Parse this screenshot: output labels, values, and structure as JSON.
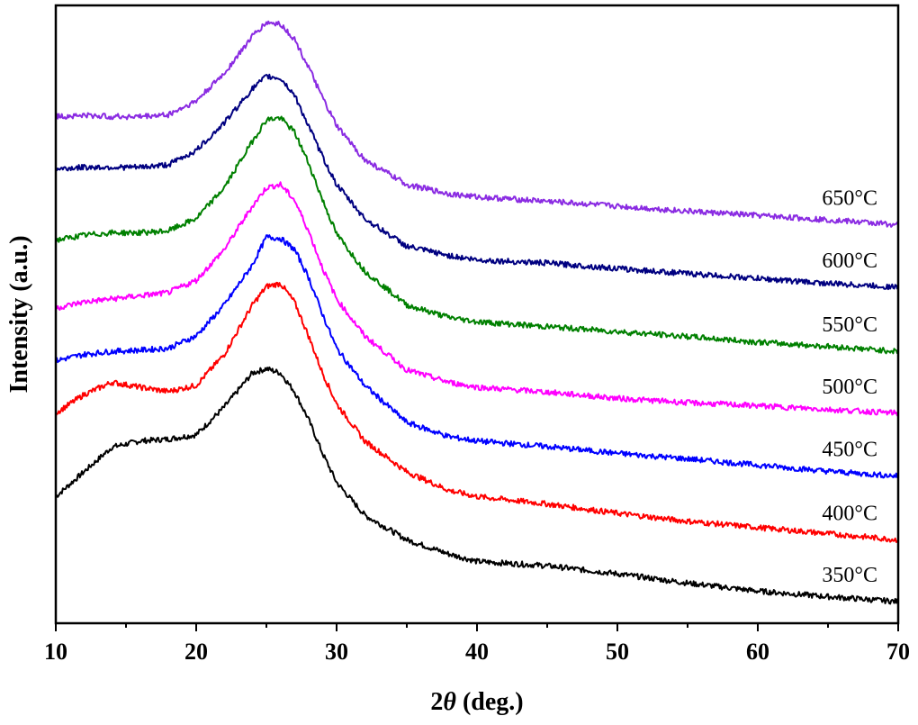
{
  "chart_data": {
    "type": "line",
    "title": "",
    "xlabel_prefix": "2",
    "xlabel_symbol": "θ",
    "xlabel_suffix": " (deg.)",
    "ylabel": "Intensity (a.u.)",
    "xlim": [
      10,
      70
    ],
    "ylim": [
      0,
      100
    ],
    "xticks": [
      10,
      20,
      30,
      40,
      50,
      60,
      70
    ],
    "yticks_visible": false,
    "grid": false,
    "legend": "none",
    "series": [
      {
        "name": "350°C",
        "color": "#000000",
        "x": [
          10,
          12,
          14,
          16,
          18,
          20,
          22,
          24,
          25,
          26,
          27,
          28,
          29,
          30,
          32,
          35,
          38,
          40,
          45,
          50,
          55,
          60,
          65,
          70
        ],
        "y": [
          20.5,
          24.5,
          28.5,
          29.5,
          29.8,
          30.5,
          35,
          40.5,
          41.2,
          40.5,
          37.5,
          33,
          27.5,
          22.8,
          17.5,
          13.5,
          11.2,
          10,
          9.3,
          8,
          6.5,
          5.2,
          4.3,
          3.5
        ]
      },
      {
        "name": "400°C",
        "color": "#ff0000",
        "x": [
          10,
          12,
          14,
          16,
          18,
          20,
          22,
          24,
          25,
          26,
          27,
          28,
          29,
          30,
          32,
          35,
          38,
          40,
          45,
          50,
          55,
          60,
          65,
          70
        ],
        "y": [
          34,
          37,
          39,
          38.2,
          37.5,
          38.5,
          43.5,
          51.5,
          54.5,
          55,
          52,
          46.5,
          40.5,
          35.5,
          29.5,
          24.5,
          21.5,
          20.5,
          19.3,
          17.8,
          16.5,
          15.5,
          14.5,
          13.5
        ]
      },
      {
        "name": "450°C",
        "color": "#0000ff",
        "x": [
          10,
          12,
          14,
          16,
          18,
          20,
          22,
          24,
          25,
          26,
          27,
          28,
          29,
          30,
          32,
          35,
          38,
          40,
          45,
          50,
          55,
          60,
          65,
          70
        ],
        "y": [
          42.5,
          43.5,
          44,
          44.2,
          44.5,
          46.5,
          51.5,
          58,
          62.5,
          62.3,
          60.5,
          56,
          50,
          44.5,
          38.5,
          32.5,
          30.2,
          29.5,
          28.6,
          27.5,
          26.6,
          25.6,
          24.6,
          23.8
        ]
      },
      {
        "name": "500°C",
        "color": "#ff00ff",
        "x": [
          10,
          12,
          14,
          16,
          18,
          20,
          22,
          24,
          25,
          26,
          27,
          28,
          29,
          30,
          32,
          35,
          38,
          40,
          45,
          50,
          55,
          60,
          65,
          70
        ],
        "y": [
          51,
          52,
          52.5,
          53,
          53.5,
          55.5,
          60.5,
          67.5,
          70.5,
          71,
          68.5,
          63.5,
          57.5,
          52.5,
          46.5,
          41,
          39,
          38.2,
          37.4,
          36.4,
          35.7,
          35.2,
          34.6,
          34
        ]
      },
      {
        "name": "550°C",
        "color": "#008000",
        "x": [
          10,
          12,
          14,
          16,
          18,
          20,
          22,
          24,
          25,
          26,
          27,
          28,
          29,
          30,
          32,
          35,
          38,
          40,
          45,
          50,
          55,
          60,
          65,
          70
        ],
        "y": [
          62,
          62.8,
          63.2,
          63.2,
          63.5,
          65.5,
          70.5,
          78,
          81.5,
          81.8,
          79.5,
          74.5,
          68.5,
          63,
          57,
          51.5,
          49.5,
          48.8,
          48,
          47.2,
          46.4,
          45.5,
          44.8,
          44
        ]
      },
      {
        "name": "600°C",
        "color": "#000080",
        "x": [
          10,
          12,
          14,
          16,
          18,
          20,
          22,
          24,
          25,
          26,
          27,
          28,
          29,
          30,
          32,
          35,
          38,
          40,
          45,
          50,
          55,
          60,
          65,
          70
        ],
        "y": [
          73.5,
          73.8,
          73.8,
          73.8,
          74.2,
          76.5,
          81,
          86.5,
          88.5,
          88.2,
          85.5,
          80.5,
          75.5,
          71,
          65.5,
          61,
          59.5,
          58.8,
          58.3,
          57.4,
          56.6,
          55.8,
          55,
          54.4
        ]
      },
      {
        "name": "650°C",
        "color": "#8a2be2",
        "x": [
          10,
          12,
          14,
          16,
          18,
          20,
          22,
          24,
          25,
          26,
          27,
          28,
          29,
          30,
          32,
          35,
          38,
          40,
          45,
          50,
          55,
          60,
          65,
          70
        ],
        "y": [
          82,
          82.2,
          82,
          82,
          82.3,
          84.5,
          89,
          95,
          97.2,
          97,
          94.5,
          90,
          85,
          80.5,
          75,
          71,
          69.5,
          69,
          68.3,
          67.5,
          66.7,
          66,
          65.3,
          64.5
        ]
      }
    ]
  }
}
